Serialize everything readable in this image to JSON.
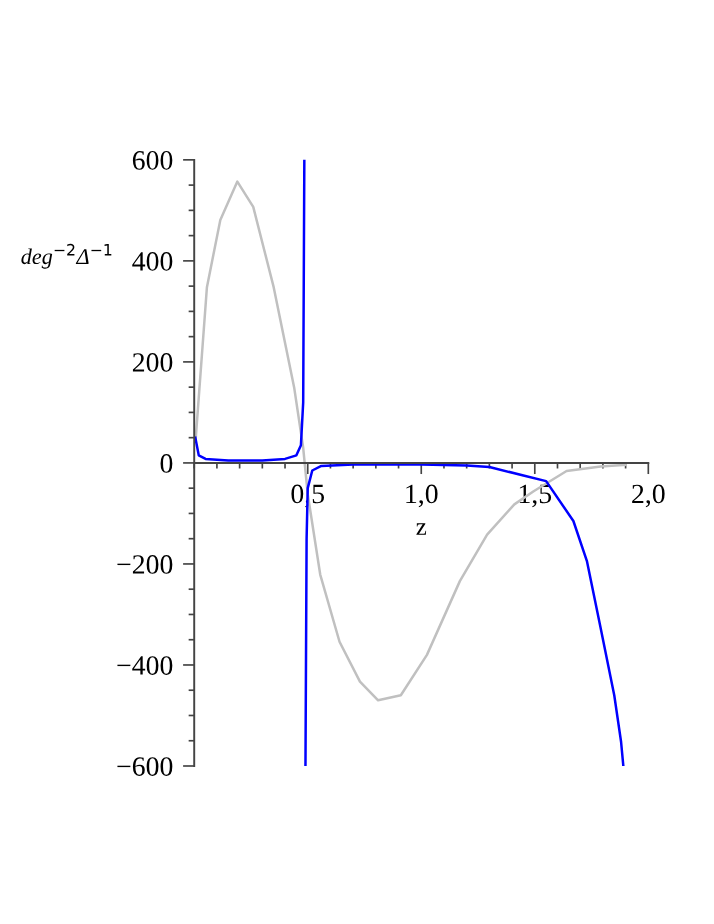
{
  "chart_data": {
    "type": "line",
    "xlabel": "z",
    "ylabel": "deg$^{−2}$Δ$^{−1}$",
    "xlim": [
      0,
      2
    ],
    "ylim": [
      -600,
      600
    ],
    "xticks": [
      {
        "value": 0.5,
        "label": "0,5"
      },
      {
        "value": 1.0,
        "label": "1,0"
      },
      {
        "value": 1.5,
        "label": "1,5"
      },
      {
        "value": 2.0,
        "label": "2,0"
      }
    ],
    "yticks": [
      {
        "value": -600,
        "label": "−600"
      },
      {
        "value": -400,
        "label": "−400"
      },
      {
        "value": -200,
        "label": "−200"
      },
      0,
      200,
      400,
      600
    ],
    "grid": false,
    "marker": "none",
    "line_style": "solid",
    "series": [
      {
        "color": "#c0c0c0",
        "x": [
          0.006,
          0.056,
          0.115,
          0.19,
          0.26,
          0.35,
          0.44,
          0.48,
          0.5,
          0.555,
          0.64,
          0.73,
          0.81,
          0.91,
          1.025,
          1.17,
          1.29,
          1.41,
          1.495,
          1.64,
          1.79,
          1.9
        ],
        "values": [
          44,
          348,
          481,
          557,
          507,
          348,
          150,
          30,
          -62,
          -221,
          -354,
          -433,
          -470,
          -460,
          -380,
          -234,
          -142,
          -82,
          -56,
          -16,
          -7,
          -4
        ]
      },
      {
        "color": "#0000ff",
        "x": [
          0.005,
          0.02,
          0.05,
          0.15,
          0.3,
          0.4,
          0.45,
          0.47,
          0.48,
          0.485,
          0.4875,
          0.49,
          0.495,
          0.5,
          0.52,
          0.56,
          0.7,
          1.0,
          1.2,
          1.3,
          1.45,
          1.55,
          1.67,
          1.73,
          1.79,
          1.85,
          1.88,
          1.89
        ],
        "values": [
          50,
          15,
          8,
          5,
          5,
          8,
          15,
          35,
          120,
          600,
          null,
          -600,
          -150,
          -50,
          -15,
          -6,
          -3,
          -3,
          -5,
          -8,
          -25,
          -36,
          -115,
          -195,
          -327,
          -460,
          -552,
          -600
        ]
      }
    ]
  }
}
